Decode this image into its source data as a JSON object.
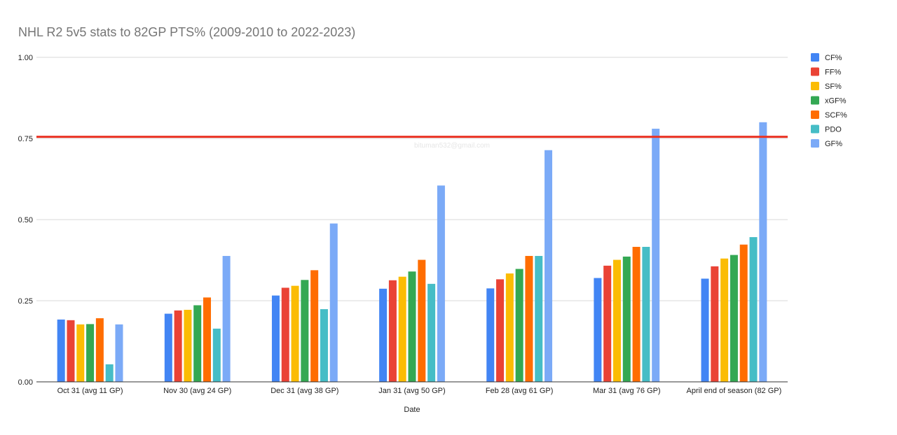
{
  "chart_data": {
    "type": "bar",
    "title": "NHL R2 5v5 stats to 82GP PTS% (2009-2010 to 2022-2023)",
    "xlabel": "Date",
    "ylabel": "",
    "ylim": [
      0,
      1
    ],
    "yticks": [
      0,
      0.25,
      0.5,
      0.75,
      1.0
    ],
    "ytick_labels": [
      "0.00",
      "0.25",
      "0.50",
      "0.75",
      "1.00"
    ],
    "grid": true,
    "legend_position": "right",
    "categories": [
      "Oct 31 (avg 11 GP)",
      "Nov 30 (avg 24 GP)",
      "Dec 31 (avg 38 GP)",
      "Jan 31 (avg 50 GP)",
      "Feb 28 (avg 61 GP)",
      "Mar 31 (avg 76 GP)",
      "April end of season (82 GP)"
    ],
    "series": [
      {
        "name": "CF%",
        "color": "#4285F4",
        "values": [
          0.192,
          0.21,
          0.266,
          0.287,
          0.288,
          0.32,
          0.318
        ]
      },
      {
        "name": "FF%",
        "color": "#EA4335",
        "values": [
          0.19,
          0.22,
          0.29,
          0.313,
          0.316,
          0.358,
          0.356
        ]
      },
      {
        "name": "SF%",
        "color": "#FBBC04",
        "values": [
          0.177,
          0.222,
          0.296,
          0.324,
          0.334,
          0.376,
          0.38
        ]
      },
      {
        "name": "xGF%",
        "color": "#34A853",
        "values": [
          0.178,
          0.236,
          0.314,
          0.34,
          0.348,
          0.386,
          0.391
        ]
      },
      {
        "name": "SCF%",
        "color": "#FF6D01",
        "values": [
          0.196,
          0.26,
          0.344,
          0.376,
          0.388,
          0.416,
          0.423
        ]
      },
      {
        "name": "PDO",
        "color": "#46BDC6",
        "values": [
          0.054,
          0.164,
          0.224,
          0.302,
          0.388,
          0.416,
          0.446
        ]
      },
      {
        "name": "GF%",
        "color": "#7BAAF7",
        "values": [
          0.177,
          0.388,
          0.488,
          0.605,
          0.714,
          0.78,
          0.8
        ]
      }
    ],
    "reference_line": {
      "value": 0.755,
      "color": "#EA3323"
    },
    "watermark": "bituman532@gmail.com"
  }
}
